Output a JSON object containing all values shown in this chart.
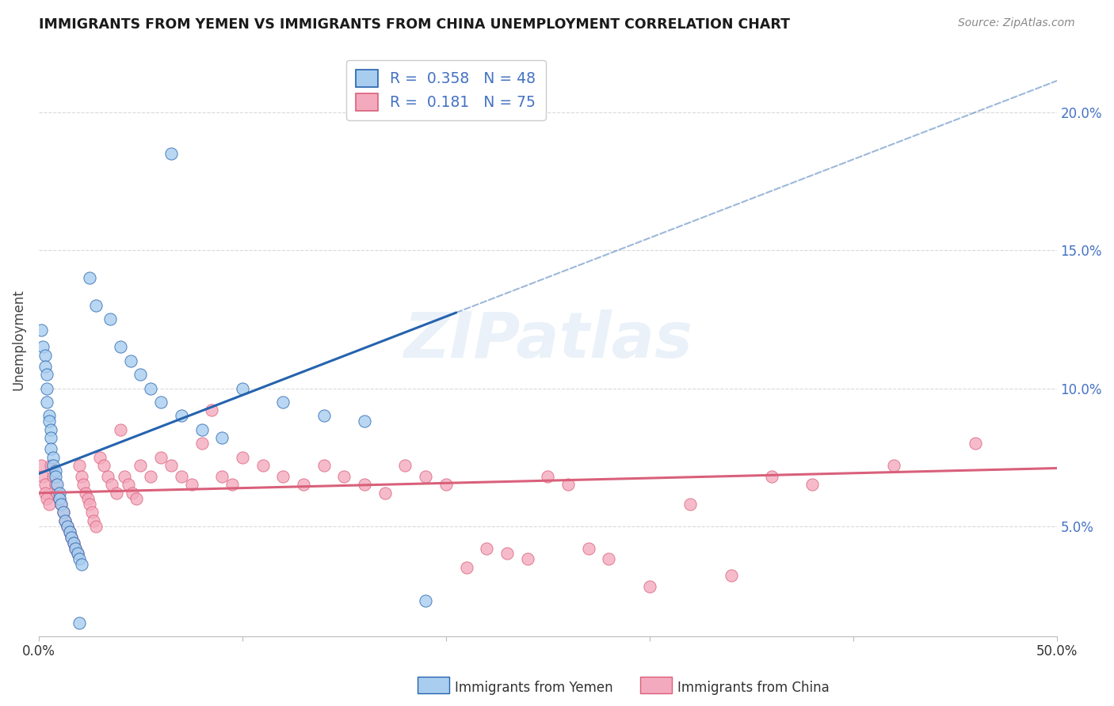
{
  "title": "IMMIGRANTS FROM YEMEN VS IMMIGRANTS FROM CHINA UNEMPLOYMENT CORRELATION CHART",
  "source": "Source: ZipAtlas.com",
  "ylabel": "Unemployment",
  "right_yticks": [
    "5.0%",
    "10.0%",
    "15.0%",
    "20.0%"
  ],
  "right_ytick_vals": [
    0.05,
    0.1,
    0.15,
    0.2
  ],
  "xlim": [
    0.0,
    0.5
  ],
  "ylim": [
    0.01,
    0.225
  ],
  "grid_yticks": [
    0.05,
    0.1,
    0.15,
    0.2
  ],
  "legend_r_yemen": "0.358",
  "legend_n_yemen": "48",
  "legend_r_china": "0.181",
  "legend_n_china": "75",
  "color_yemen": "#A8CDEF",
  "color_china": "#F4AABE",
  "line_color_yemen": "#2563AE",
  "line_color_china": "#D9607A",
  "watermark": "ZIPatlas",
  "yemen_line_start_x": 0.0,
  "yemen_line_solid_end_x": 0.205,
  "yemen_line_end_x": 0.5,
  "yemen_line_start_y": 0.069,
  "yemen_line_slope": 0.285,
  "china_line_start_x": 0.0,
  "china_line_end_x": 0.5,
  "china_line_start_y": 0.062,
  "china_line_slope": 0.018,
  "yemen_scatter": [
    [
      0.001,
      0.121
    ],
    [
      0.002,
      0.115
    ],
    [
      0.003,
      0.112
    ],
    [
      0.003,
      0.108
    ],
    [
      0.004,
      0.105
    ],
    [
      0.004,
      0.1
    ],
    [
      0.004,
      0.095
    ],
    [
      0.005,
      0.09
    ],
    [
      0.005,
      0.088
    ],
    [
      0.006,
      0.085
    ],
    [
      0.006,
      0.082
    ],
    [
      0.006,
      0.078
    ],
    [
      0.007,
      0.075
    ],
    [
      0.007,
      0.072
    ],
    [
      0.008,
      0.07
    ],
    [
      0.008,
      0.068
    ],
    [
      0.009,
      0.065
    ],
    [
      0.01,
      0.062
    ],
    [
      0.01,
      0.06
    ],
    [
      0.011,
      0.058
    ],
    [
      0.012,
      0.055
    ],
    [
      0.013,
      0.052
    ],
    [
      0.014,
      0.05
    ],
    [
      0.015,
      0.048
    ],
    [
      0.016,
      0.046
    ],
    [
      0.017,
      0.044
    ],
    [
      0.018,
      0.042
    ],
    [
      0.019,
      0.04
    ],
    [
      0.02,
      0.038
    ],
    [
      0.021,
      0.036
    ],
    [
      0.025,
      0.14
    ],
    [
      0.028,
      0.13
    ],
    [
      0.035,
      0.125
    ],
    [
      0.04,
      0.115
    ],
    [
      0.045,
      0.11
    ],
    [
      0.05,
      0.105
    ],
    [
      0.055,
      0.1
    ],
    [
      0.06,
      0.095
    ],
    [
      0.065,
      0.185
    ],
    [
      0.07,
      0.09
    ],
    [
      0.08,
      0.085
    ],
    [
      0.09,
      0.082
    ],
    [
      0.1,
      0.1
    ],
    [
      0.12,
      0.095
    ],
    [
      0.14,
      0.09
    ],
    [
      0.16,
      0.088
    ],
    [
      0.19,
      0.023
    ],
    [
      0.02,
      0.015
    ]
  ],
  "china_scatter": [
    [
      0.001,
      0.072
    ],
    [
      0.002,
      0.068
    ],
    [
      0.003,
      0.065
    ],
    [
      0.003,
      0.062
    ],
    [
      0.004,
      0.06
    ],
    [
      0.005,
      0.058
    ],
    [
      0.006,
      0.072
    ],
    [
      0.007,
      0.068
    ],
    [
      0.008,
      0.065
    ],
    [
      0.009,
      0.062
    ],
    [
      0.01,
      0.06
    ],
    [
      0.011,
      0.058
    ],
    [
      0.012,
      0.055
    ],
    [
      0.013,
      0.052
    ],
    [
      0.014,
      0.05
    ],
    [
      0.015,
      0.048
    ],
    [
      0.016,
      0.046
    ],
    [
      0.017,
      0.044
    ],
    [
      0.018,
      0.042
    ],
    [
      0.019,
      0.04
    ],
    [
      0.02,
      0.072
    ],
    [
      0.021,
      0.068
    ],
    [
      0.022,
      0.065
    ],
    [
      0.023,
      0.062
    ],
    [
      0.024,
      0.06
    ],
    [
      0.025,
      0.058
    ],
    [
      0.026,
      0.055
    ],
    [
      0.027,
      0.052
    ],
    [
      0.028,
      0.05
    ],
    [
      0.03,
      0.075
    ],
    [
      0.032,
      0.072
    ],
    [
      0.034,
      0.068
    ],
    [
      0.036,
      0.065
    ],
    [
      0.038,
      0.062
    ],
    [
      0.04,
      0.085
    ],
    [
      0.042,
      0.068
    ],
    [
      0.044,
      0.065
    ],
    [
      0.046,
      0.062
    ],
    [
      0.048,
      0.06
    ],
    [
      0.05,
      0.072
    ],
    [
      0.055,
      0.068
    ],
    [
      0.06,
      0.075
    ],
    [
      0.065,
      0.072
    ],
    [
      0.07,
      0.068
    ],
    [
      0.075,
      0.065
    ],
    [
      0.08,
      0.08
    ],
    [
      0.085,
      0.092
    ],
    [
      0.09,
      0.068
    ],
    [
      0.095,
      0.065
    ],
    [
      0.1,
      0.075
    ],
    [
      0.11,
      0.072
    ],
    [
      0.12,
      0.068
    ],
    [
      0.13,
      0.065
    ],
    [
      0.14,
      0.072
    ],
    [
      0.15,
      0.068
    ],
    [
      0.16,
      0.065
    ],
    [
      0.17,
      0.062
    ],
    [
      0.18,
      0.072
    ],
    [
      0.19,
      0.068
    ],
    [
      0.2,
      0.065
    ],
    [
      0.21,
      0.035
    ],
    [
      0.22,
      0.042
    ],
    [
      0.23,
      0.04
    ],
    [
      0.24,
      0.038
    ],
    [
      0.25,
      0.068
    ],
    [
      0.26,
      0.065
    ],
    [
      0.27,
      0.042
    ],
    [
      0.28,
      0.038
    ],
    [
      0.3,
      0.028
    ],
    [
      0.32,
      0.058
    ],
    [
      0.34,
      0.032
    ],
    [
      0.36,
      0.068
    ],
    [
      0.38,
      0.065
    ],
    [
      0.42,
      0.072
    ],
    [
      0.46,
      0.08
    ]
  ]
}
